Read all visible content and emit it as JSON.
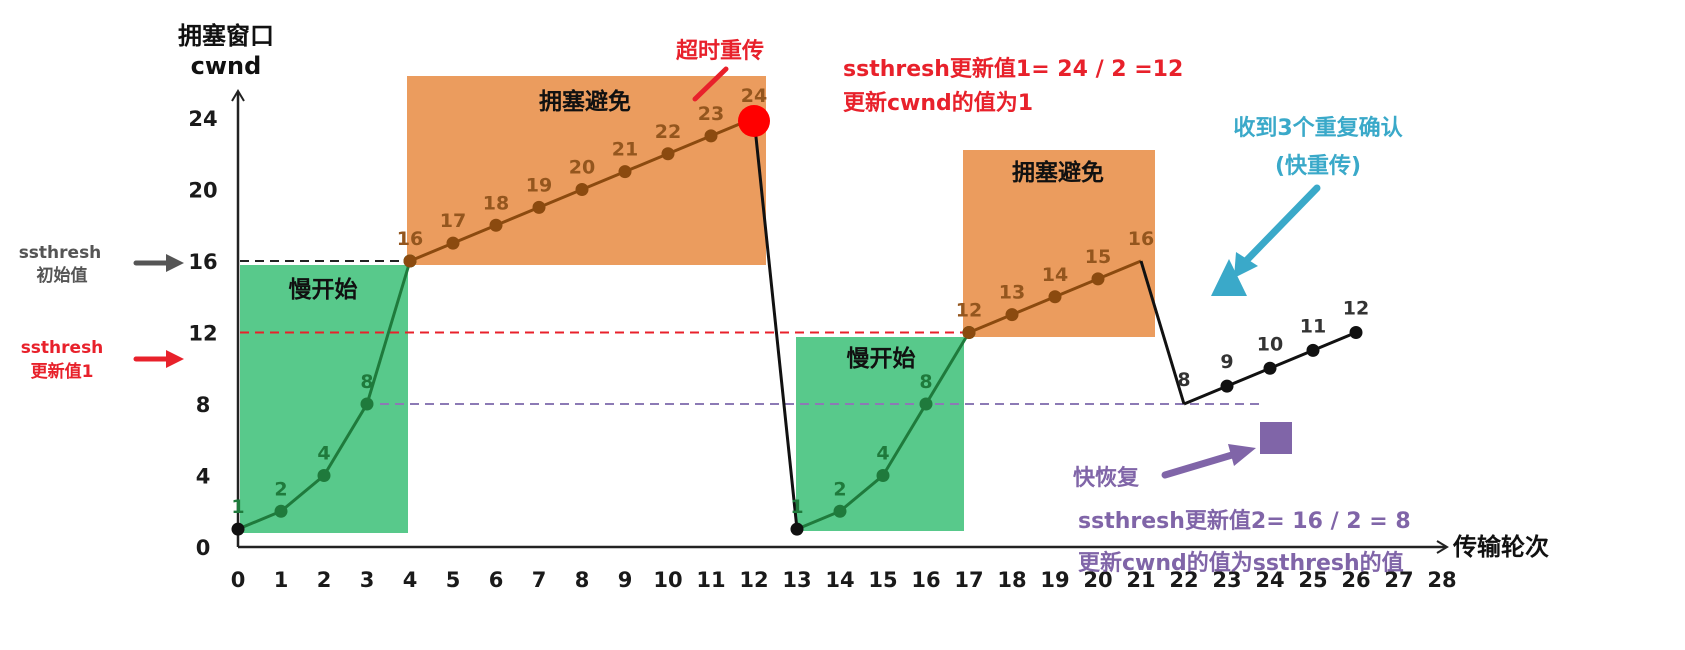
{
  "chart_data": {
    "type": "line",
    "title": "",
    "xlabel": "传输轮次",
    "ylabel": "拥塞窗口 cwnd",
    "ylabel_line1": "拥塞窗口",
    "ylabel_line2": "cwnd",
    "xlim": [
      0,
      28
    ],
    "ylim": [
      0,
      24
    ],
    "x_ticks": [
      0,
      1,
      2,
      3,
      4,
      5,
      6,
      7,
      8,
      9,
      10,
      11,
      12,
      13,
      14,
      15,
      16,
      17,
      18,
      19,
      20,
      21,
      22,
      23,
      24,
      25,
      26,
      27,
      28
    ],
    "y_ticks": [
      0,
      4,
      8,
      12,
      16,
      20,
      24
    ],
    "grid": false,
    "series": [
      {
        "name": "慢开始 1",
        "color": "#1f7a3c",
        "x": [
          0,
          1,
          2,
          3,
          4
        ],
        "y": [
          1,
          2,
          4,
          8,
          16
        ]
      },
      {
        "name": "拥塞避免 1",
        "color": "#8b4a0f",
        "x": [
          4,
          5,
          6,
          7,
          8,
          9,
          10,
          11,
          12
        ],
        "y": [
          16,
          17,
          18,
          19,
          20,
          21,
          22,
          23,
          24
        ]
      },
      {
        "name": "超时重传 drop",
        "color": "#111111",
        "x": [
          12,
          13
        ],
        "y": [
          24,
          1
        ]
      },
      {
        "name": "慢开始 2",
        "color": "#1f7a3c",
        "x": [
          13,
          14,
          15,
          16,
          17
        ],
        "y": [
          1,
          2,
          4,
          8,
          12
        ]
      },
      {
        "name": "拥塞避免 2",
        "color": "#8b4a0f",
        "x": [
          17,
          18,
          19,
          20,
          21
        ],
        "y": [
          12,
          13,
          14,
          15,
          16
        ]
      },
      {
        "name": "快重传 drop",
        "color": "#111111",
        "x": [
          21,
          22
        ],
        "y": [
          16,
          8
        ]
      },
      {
        "name": "快恢复",
        "color": "#111111",
        "x": [
          22,
          23,
          24,
          25,
          26
        ],
        "y": [
          8,
          9,
          10,
          11,
          12
        ]
      }
    ],
    "point_labels": {
      "slow_start_1": [
        "1",
        "2",
        "4",
        "8"
      ],
      "cong_avoid_1": [
        "16",
        "17",
        "18",
        "19",
        "20",
        "21",
        "22",
        "23",
        "24"
      ],
      "slow_start_2": [
        "1",
        "2",
        "4",
        "8"
      ],
      "cong_avoid_2": [
        "12",
        "13",
        "14",
        "15",
        "16"
      ],
      "fast_recovery": [
        "8",
        "9",
        "10",
        "11",
        "12"
      ]
    },
    "thresholds": [
      {
        "label": "ssthresh 初始值",
        "y": 16,
        "style": "dashed",
        "color": "#222222"
      },
      {
        "label": "ssthresh 更新值1",
        "y": 12,
        "style": "dashed",
        "color": "#e8212b"
      },
      {
        "label": "ssthresh 更新值2",
        "y": 8,
        "style": "dashed",
        "color": "#8c7ab5"
      }
    ],
    "regions": [
      {
        "label": "慢开始",
        "x": [
          0,
          4
        ],
        "y": [
          1,
          16
        ],
        "color": "#58c98b"
      },
      {
        "label": "拥塞避免",
        "x": [
          4,
          12.6
        ],
        "y": [
          16,
          26
        ],
        "color": "#eb9c5e"
      },
      {
        "label": "慢开始",
        "x": [
          13,
          17
        ],
        "y": [
          1,
          12
        ],
        "color": "#58c98b"
      },
      {
        "label": "拥塞避免",
        "x": [
          17,
          21.4
        ],
        "y": [
          12,
          22
        ],
        "color": "#eb9c5e"
      }
    ],
    "annotations": [
      {
        "text": "超时重传",
        "x": 12,
        "y": 24,
        "color": "#e8212b"
      },
      {
        "text": "ssthresh更新值1= 24 / 2 =12",
        "color": "#e8212b"
      },
      {
        "text": "更新cwnd的值为1",
        "color": "#e8212b"
      },
      {
        "text": "收到3个重复确认",
        "x": 21,
        "y": 16,
        "color": "#3aa9c9"
      },
      {
        "text": "(快重传)",
        "color": "#3aa9c9"
      },
      {
        "text": "快恢复",
        "x": 22,
        "y": 8,
        "color": "#8065a8"
      },
      {
        "text": "ssthresh更新值2= 16 / 2 = 8",
        "color": "#8065a8"
      },
      {
        "text": "更新cwnd的值为ssthresh的值",
        "color": "#8065a8"
      }
    ]
  },
  "labels": {
    "y_title_1": "拥塞窗口",
    "y_title_2": "cwnd",
    "x_title": "传输轮次",
    "region_slow_start": "慢开始",
    "region_cong_avoid": "拥塞避免",
    "side_init_1": "ssthresh",
    "side_init_2": "初始值",
    "side_upd1_1": "ssthresh",
    "side_upd1_2": "更新值1",
    "timeout": "超时重传",
    "timeout_eq": "ssthresh更新值1= 24 / 2 =12",
    "timeout_cwnd": "更新cwnd的值为1",
    "dupack_1": "收到3个重复确认",
    "dupack_2": "(快重传)",
    "fast_recovery": "快恢复",
    "fr_eq": "ssthresh更新值2= 16 / 2 = 8",
    "fr_cwnd": "更新cwnd的值为ssthresh的值"
  },
  "colors": {
    "green_region": "#58c98b",
    "green_line": "#1f7a3c",
    "orange_region": "#eb9c5e",
    "orange_line": "#8b4a0f",
    "orange_label": "#94561e",
    "red": "#e8212b",
    "blue": "#3aa9c9",
    "purple": "#8065a8",
    "gray": "#555555"
  }
}
